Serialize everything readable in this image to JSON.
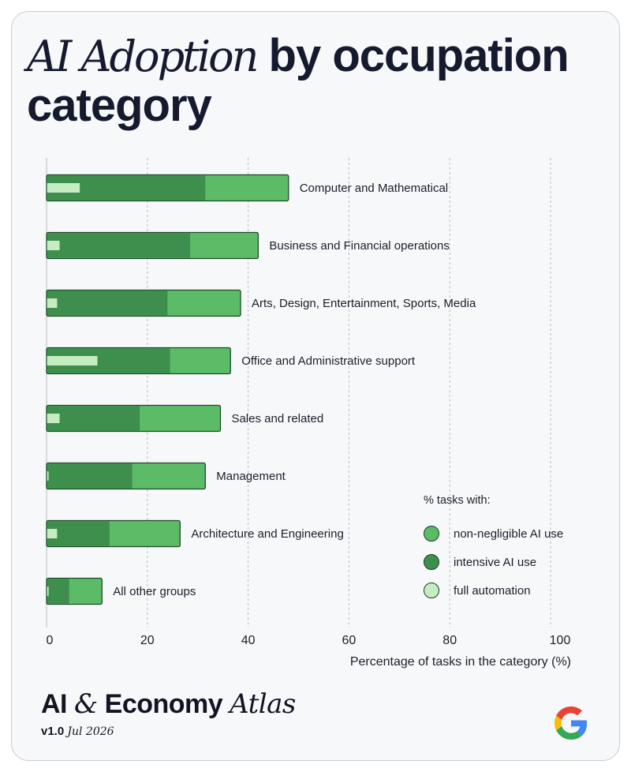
{
  "title": {
    "serif": "AI Adoption",
    "rest": " by occupation category"
  },
  "chart_data": {
    "type": "bar",
    "orientation": "horizontal",
    "categories": [
      "Computer and Mathematical",
      "Business and Financial operations",
      "Arts, Design, Entertainment, Sports, Media",
      "Office and Administrative support",
      "Sales and related",
      "Management",
      "Architecture and Engineering",
      "All other groups"
    ],
    "series": [
      {
        "name": "non-negligible AI use",
        "values": [
          48,
          42,
          38.5,
          36.5,
          34.5,
          31.5,
          26.5,
          11
        ]
      },
      {
        "name": "intensive AI use",
        "values": [
          31.5,
          28.5,
          24,
          24.5,
          18.5,
          17,
          12.5,
          4.5
        ]
      },
      {
        "name": "full automation",
        "values": [
          6.5,
          2.5,
          2,
          10,
          2.5,
          0.3,
          2,
          0.3
        ]
      }
    ],
    "colors": [
      "#5cbb67",
      "#3e8f4e",
      "#c6edc2"
    ],
    "xlim": [
      0,
      100
    ],
    "xticks": [
      0,
      20,
      40,
      60,
      80,
      100
    ],
    "xlabel": "Percentage of tasks in the category (%)",
    "grid": true,
    "legend": {
      "title": "% tasks with:",
      "position": "bottom-right"
    }
  },
  "brand": {
    "ai": "AI ",
    "amp": "&",
    "economy": " Economy ",
    "atlas": "Atlas",
    "version": "v1.0",
    "date": "Jul 2026"
  }
}
